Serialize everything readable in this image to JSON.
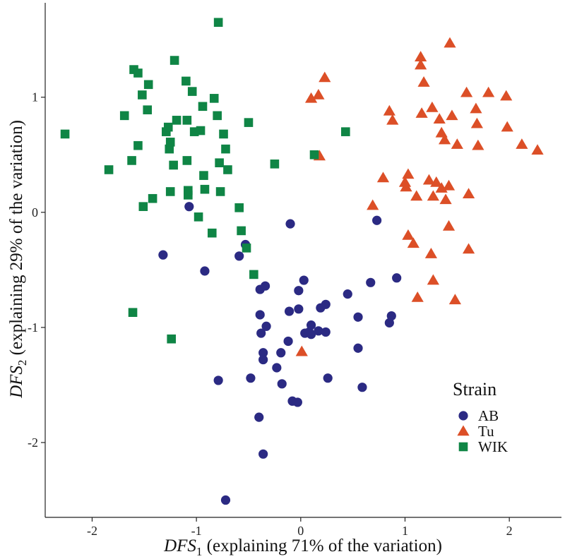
{
  "chart_data": {
    "type": "scatter",
    "xlabel": {
      "symbol": "DFS",
      "subscript": "1",
      "text": " (explaining 71% of the variation)"
    },
    "ylabel": {
      "symbol": "DFS",
      "subscript": "2",
      "text": " (explaining 29% of the variation)"
    },
    "xlim": [
      -2.45,
      2.5
    ],
    "ylim": [
      -2.65,
      1.82
    ],
    "xticks": [
      -2,
      -1,
      0,
      1,
      2
    ],
    "yticks": [
      -2,
      -1,
      0,
      1
    ],
    "xtick_labels": [
      "-2",
      "-1",
      "0",
      "1",
      "2"
    ],
    "ytick_labels": [
      "-2",
      "-1",
      "0",
      "1"
    ],
    "grid": false,
    "legend": {
      "title": "Strain",
      "placement": "bottom-right",
      "entries": [
        {
          "label": "AB",
          "shape": "circle",
          "color": "#2b2a83"
        },
        {
          "label": "Tu",
          "shape": "triangle",
          "color": "#dc4f27"
        },
        {
          "label": "WIK",
          "shape": "square",
          "color": "#0f8545"
        }
      ]
    },
    "series": [
      {
        "name": "AB",
        "shape": "circle",
        "color": "#2b2a83",
        "points": [
          [
            -1.32,
            -0.37
          ],
          [
            -1.07,
            0.05
          ],
          [
            -0.92,
            -0.51
          ],
          [
            -0.79,
            -1.46
          ],
          [
            -0.72,
            -2.5
          ],
          [
            -0.59,
            -0.38
          ],
          [
            -0.53,
            -0.28
          ],
          [
            -0.48,
            -1.44
          ],
          [
            -0.4,
            -1.78
          ],
          [
            -0.36,
            -2.1
          ],
          [
            -0.39,
            -0.67
          ],
          [
            -0.34,
            -0.64
          ],
          [
            -0.39,
            -0.89
          ],
          [
            -0.33,
            -0.99
          ],
          [
            -0.38,
            -1.05
          ],
          [
            -0.36,
            -1.22
          ],
          [
            -0.36,
            -1.28
          ],
          [
            -0.23,
            -1.35
          ],
          [
            -0.19,
            -1.22
          ],
          [
            -0.18,
            -1.49
          ],
          [
            -0.12,
            -1.12
          ],
          [
            -0.11,
            -0.86
          ],
          [
            -0.1,
            -0.1
          ],
          [
            -0.08,
            -1.64
          ],
          [
            -0.03,
            -1.65
          ],
          [
            -0.02,
            -0.84
          ],
          [
            -0.02,
            -0.68
          ],
          [
            0.03,
            -0.59
          ],
          [
            0.04,
            -1.05
          ],
          [
            0.08,
            -1.04
          ],
          [
            0.1,
            -0.98
          ],
          [
            0.1,
            -1.06
          ],
          [
            0.17,
            -1.03
          ],
          [
            0.19,
            -0.83
          ],
          [
            0.24,
            -0.8
          ],
          [
            0.24,
            -1.04
          ],
          [
            0.26,
            -1.44
          ],
          [
            0.45,
            -0.71
          ],
          [
            0.55,
            -0.91
          ],
          [
            0.55,
            -1.18
          ],
          [
            0.59,
            -1.52
          ],
          [
            0.67,
            -0.61
          ],
          [
            0.73,
            -0.07
          ],
          [
            0.85,
            -0.96
          ],
          [
            0.87,
            -0.9
          ],
          [
            0.92,
            -0.57
          ]
        ]
      },
      {
        "name": "Tu",
        "shape": "triangle",
        "color": "#dc4f27",
        "points": [
          [
            0.01,
            -1.21
          ],
          [
            0.1,
            0.99
          ],
          [
            0.17,
            1.02
          ],
          [
            0.18,
            0.49
          ],
          [
            0.23,
            1.17
          ],
          [
            0.69,
            0.06
          ],
          [
            0.79,
            0.3
          ],
          [
            0.85,
            0.88
          ],
          [
            0.88,
            0.8
          ],
          [
            1.0,
            0.26
          ],
          [
            1.01,
            0.22
          ],
          [
            1.03,
            0.33
          ],
          [
            1.03,
            -0.2
          ],
          [
            1.08,
            -0.27
          ],
          [
            1.11,
            0.14
          ],
          [
            1.12,
            -0.74
          ],
          [
            1.15,
            1.35
          ],
          [
            1.15,
            1.28
          ],
          [
            1.16,
            0.86
          ],
          [
            1.18,
            1.13
          ],
          [
            1.23,
            0.28
          ],
          [
            1.25,
            -0.36
          ],
          [
            1.26,
            0.91
          ],
          [
            1.27,
            0.14
          ],
          [
            1.27,
            -0.59
          ],
          [
            1.3,
            0.26
          ],
          [
            1.33,
            0.81
          ],
          [
            1.35,
            0.69
          ],
          [
            1.35,
            0.21
          ],
          [
            1.38,
            0.63
          ],
          [
            1.39,
            0.11
          ],
          [
            1.42,
            0.23
          ],
          [
            1.42,
            -0.12
          ],
          [
            1.43,
            1.47
          ],
          [
            1.45,
            0.84
          ],
          [
            1.48,
            -0.76
          ],
          [
            1.5,
            0.59
          ],
          [
            1.59,
            1.04
          ],
          [
            1.61,
            0.16
          ],
          [
            1.61,
            -0.32
          ],
          [
            1.68,
            0.9
          ],
          [
            1.69,
            0.77
          ],
          [
            1.7,
            0.58
          ],
          [
            1.8,
            1.04
          ],
          [
            1.97,
            1.01
          ],
          [
            1.98,
            0.74
          ],
          [
            2.12,
            0.59
          ],
          [
            2.27,
            0.54
          ]
        ]
      },
      {
        "name": "WIK",
        "shape": "square",
        "color": "#0f8545",
        "points": [
          [
            -2.26,
            0.68
          ],
          [
            -1.84,
            0.37
          ],
          [
            -1.69,
            0.84
          ],
          [
            -1.62,
            0.45
          ],
          [
            -1.6,
            1.24
          ],
          [
            -1.56,
            1.21
          ],
          [
            -1.56,
            0.58
          ],
          [
            -1.52,
            1.02
          ],
          [
            -1.51,
            0.05
          ],
          [
            -1.47,
            0.89
          ],
          [
            -1.46,
            1.11
          ],
          [
            -1.42,
            0.12
          ],
          [
            -1.29,
            0.7
          ],
          [
            -1.27,
            0.74
          ],
          [
            -1.26,
            0.55
          ],
          [
            -1.25,
            0.18
          ],
          [
            -1.25,
            0.61
          ],
          [
            -1.24,
            -1.1
          ],
          [
            -1.22,
            0.41
          ],
          [
            -1.21,
            1.32
          ],
          [
            -1.19,
            0.8
          ],
          [
            -1.1,
            1.14
          ],
          [
            -1.09,
            0.45
          ],
          [
            -1.09,
            0.8
          ],
          [
            -1.08,
            0.15
          ],
          [
            -1.08,
            0.19
          ],
          [
            -1.04,
            1.05
          ],
          [
            -1.02,
            0.7
          ],
          [
            -0.98,
            -0.04
          ],
          [
            -0.96,
            0.71
          ],
          [
            -0.94,
            0.92
          ],
          [
            -0.93,
            0.32
          ],
          [
            -0.92,
            0.2
          ],
          [
            -0.85,
            -0.18
          ],
          [
            -0.83,
            0.99
          ],
          [
            -0.8,
            0.84
          ],
          [
            -0.79,
            1.65
          ],
          [
            -0.78,
            0.43
          ],
          [
            -0.77,
            0.18
          ],
          [
            -0.74,
            0.68
          ],
          [
            -0.72,
            0.55
          ],
          [
            -0.7,
            0.37
          ],
          [
            -0.59,
            0.04
          ],
          [
            -0.57,
            -0.16
          ],
          [
            -0.52,
            -0.31
          ],
          [
            -0.5,
            0.78
          ],
          [
            -0.45,
            -0.54
          ],
          [
            -0.25,
            0.42
          ],
          [
            -1.61,
            -0.87
          ],
          [
            0.13,
            0.5
          ],
          [
            0.43,
            0.7
          ]
        ]
      }
    ]
  }
}
